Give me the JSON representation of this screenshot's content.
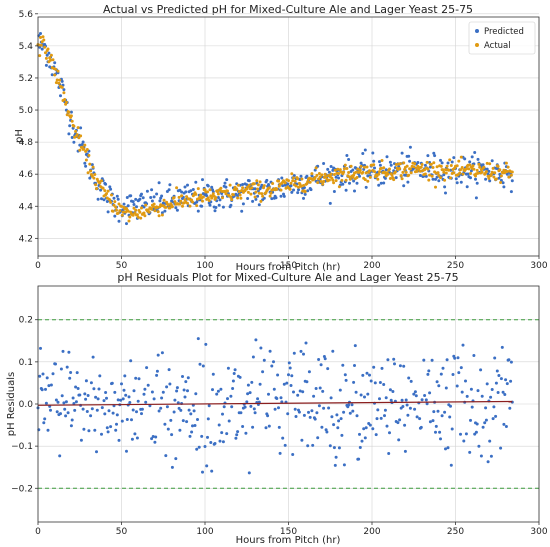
{
  "colors": {
    "predicted": "#3b6fc4",
    "actual": "#e09a12",
    "zero_line": "#8b1f1f",
    "band_line": "#3a9a3a",
    "grid": "#d3d3d3",
    "axis": "#333333"
  },
  "chart_data": [
    {
      "type": "scatter",
      "title": "Actual vs Predicted pH for Mixed-Culture Ale and Lager Yeast 25-75",
      "xlabel": "Hours from Pitch (hr)",
      "ylabel": "pH",
      "xlim": [
        0,
        300
      ],
      "ylim": [
        4.09,
        5.58
      ],
      "x_ticks": [
        0,
        50,
        100,
        150,
        200,
        250,
        300
      ],
      "y_ticks": [
        4.2,
        4.4,
        4.6,
        4.8,
        5.0,
        5.2,
        5.4,
        5.6
      ],
      "x_tick_labels": [
        "0",
        "50",
        "100",
        "150",
        "200",
        "250",
        "300"
      ],
      "y_tick_labels": [
        "4.2",
        "4.4",
        "4.6",
        "4.8",
        "5.0",
        "5.2",
        "5.4",
        "5.6"
      ],
      "grid": true,
      "legend_position": "top-right",
      "sampling_interval_hr": 0.5,
      "x_range": [
        0,
        284
      ],
      "series": [
        {
          "name": "Predicted",
          "color": "#3b6fc4",
          "trend_x": [
            0,
            5,
            10,
            15,
            20,
            25,
            30,
            35,
            40,
            45,
            50,
            55,
            60,
            70,
            80,
            90,
            100,
            110,
            120,
            130,
            140,
            150,
            160,
            170,
            180,
            190,
            200,
            210,
            220,
            230,
            240,
            250,
            260,
            270,
            284
          ],
          "trend_y": [
            5.42,
            5.38,
            5.25,
            5.1,
            4.93,
            4.8,
            4.68,
            4.56,
            4.47,
            4.42,
            4.4,
            4.39,
            4.4,
            4.42,
            4.43,
            4.45,
            4.46,
            4.47,
            4.48,
            4.49,
            4.5,
            4.53,
            4.56,
            4.58,
            4.6,
            4.61,
            4.62,
            4.62,
            4.63,
            4.63,
            4.63,
            4.62,
            4.62,
            4.62,
            4.6
          ],
          "scatter_spread": 0.09
        },
        {
          "name": "Actual",
          "color": "#e09a12",
          "trend_x": [
            0,
            5,
            10,
            15,
            20,
            25,
            30,
            35,
            40,
            45,
            50,
            55,
            60,
            70,
            80,
            90,
            100,
            110,
            120,
            130,
            140,
            150,
            160,
            170,
            180,
            190,
            200,
            210,
            220,
            230,
            240,
            250,
            260,
            270,
            284
          ],
          "trend_y": [
            5.42,
            5.38,
            5.25,
            5.1,
            4.93,
            4.8,
            4.68,
            4.56,
            4.47,
            4.42,
            4.37,
            4.35,
            4.36,
            4.39,
            4.42,
            4.44,
            4.46,
            4.47,
            4.49,
            4.5,
            4.51,
            4.53,
            4.56,
            4.58,
            4.6,
            4.61,
            4.62,
            4.62,
            4.63,
            4.63,
            4.63,
            4.62,
            4.62,
            4.62,
            4.6
          ],
          "scatter_spread": 0.05
        }
      ]
    },
    {
      "type": "scatter",
      "title": "pH Residuals Plot for Mixed-Culture Ale and Lager Yeast 25-75",
      "xlabel": "Hours from Pitch (hr)",
      "ylabel": "pH Residuals",
      "xlim": [
        0,
        300
      ],
      "ylim": [
        -0.28,
        0.28
      ],
      "x_ticks": [
        0,
        50,
        100,
        150,
        200,
        250,
        300
      ],
      "y_ticks": [
        -0.2,
        -0.1,
        0.0,
        0.1,
        0.2
      ],
      "x_tick_labels": [
        "0",
        "50",
        "100",
        "150",
        "200",
        "250",
        "300"
      ],
      "y_tick_labels": [
        "−0.2",
        "−0.1",
        "0.0",
        "0.1",
        "0.2"
      ],
      "grid": true,
      "reference_lines": [
        {
          "y": 0.2,
          "style": "dashed",
          "color": "#3a9a3a"
        },
        {
          "y": -0.2,
          "style": "dashed",
          "color": "#3a9a3a"
        }
      ],
      "trend_line": {
        "x": [
          0,
          284
        ],
        "y": [
          -0.003,
          0.006
        ],
        "color": "#8b1f1f"
      },
      "residual_range": [
        -0.17,
        0.16
      ],
      "x_range": [
        0,
        284
      ],
      "sampling_interval_hr": 0.5
    }
  ]
}
